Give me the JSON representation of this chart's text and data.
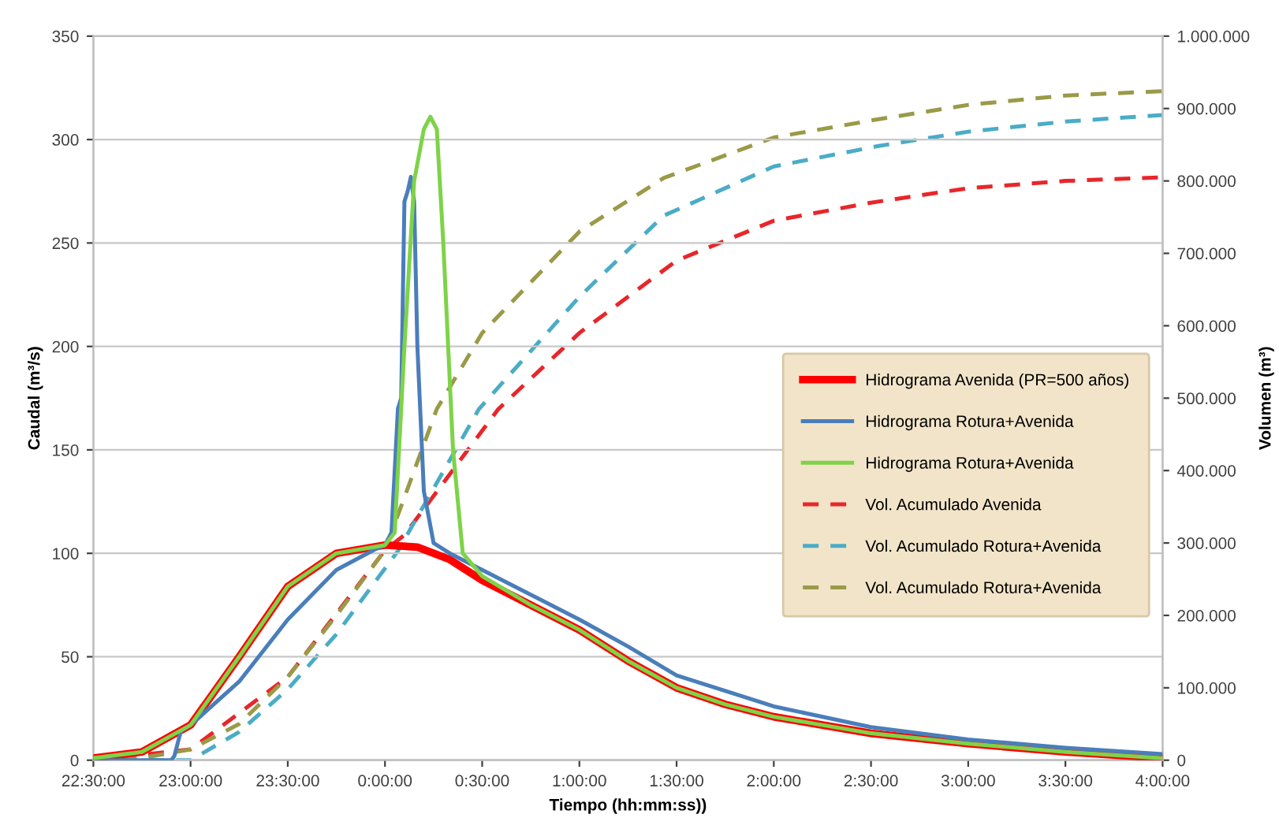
{
  "chart_data": {
    "type": "line",
    "xlabel": "Tiempo (hh:mm:ss))",
    "ylabel": "Caudal (m³/s)",
    "y2label": "Volumen (m³)",
    "xlim": [
      "2000-01-01T22:30",
      "2000-01-02T04:00"
    ],
    "xticks": [
      {
        "value": "2000-01-01T22:30",
        "label": "22:30:00"
      },
      {
        "value": "2000-01-01T23:00",
        "label": "23:00:00"
      },
      {
        "value": "2000-01-01T23:30",
        "label": "23:30:00"
      },
      {
        "value": "2000-01-02T00:00",
        "label": "0:00:00"
      },
      {
        "value": "2000-01-02T00:30",
        "label": "0:30:00"
      },
      {
        "value": "2000-01-02T01:00",
        "label": "1:00:00"
      },
      {
        "value": "2000-01-02T01:30",
        "label": "1:30:00"
      },
      {
        "value": "2000-01-02T02:00",
        "label": "2:00:00"
      },
      {
        "value": "2000-01-02T02:30",
        "label": "2:30:00"
      },
      {
        "value": "2000-01-02T03:00",
        "label": "3:00:00"
      },
      {
        "value": "2000-01-02T03:30",
        "label": "3:30:00"
      },
      {
        "value": "2000-01-02T04:00",
        "label": "4:00:00"
      }
    ],
    "ylim": [
      0,
      350
    ],
    "yticks": [
      0,
      50,
      100,
      150,
      200,
      250,
      300,
      350
    ],
    "y2lim": [
      0,
      1000000
    ],
    "y2ticks": [
      {
        "value": 0,
        "label": "0"
      },
      {
        "value": 100000,
        "label": "100.000"
      },
      {
        "value": 200000,
        "label": "200.000"
      },
      {
        "value": 300000,
        "label": "300.000"
      },
      {
        "value": 400000,
        "label": "400.000"
      },
      {
        "value": 500000,
        "label": "500.000"
      },
      {
        "value": 600000,
        "label": "600.000"
      },
      {
        "value": 700000,
        "label": "700.000"
      },
      {
        "value": 800000,
        "label": "800.000"
      },
      {
        "value": 900000,
        "label": "900.000"
      },
      {
        "value": 1000000,
        "label": "1.000.000"
      }
    ],
    "grid": "y",
    "legend": "right",
    "marker": "none",
    "series": [
      {
        "name": "Hidrograma Avenida (PR=500 años)",
        "color": "#ff0000",
        "line_style": "solid",
        "axis": "y",
        "x": [
          "2000-01-01T22:30",
          "2000-01-01T22:45",
          "2000-01-01T23:00",
          "2000-01-01T23:15",
          "2000-01-01T23:30",
          "2000-01-01T23:45",
          "2000-01-02T00:00",
          "2000-01-02T00:10",
          "2000-01-02T00:20",
          "2000-01-02T00:30",
          "2000-01-02T00:45",
          "2000-01-02T01:00",
          "2000-01-02T01:15",
          "2000-01-02T01:30",
          "2000-01-02T01:45",
          "2000-01-02T02:00",
          "2000-01-02T02:30",
          "2000-01-02T03:00",
          "2000-01-02T03:30",
          "2000-01-02T04:00"
        ],
        "values": [
          1,
          4,
          17,
          50,
          84,
          100,
          104,
          103,
          97,
          87,
          75,
          63,
          48,
          35,
          27,
          21,
          13,
          8,
          4,
          1
        ]
      },
      {
        "name": "Hidrograma Rotura+Avenida",
        "color": "#4a7ebb",
        "line_style": "solid",
        "axis": "y",
        "x": [
          "2000-01-01T22:30",
          "2000-01-01T22:54",
          "2000-01-01T22:55",
          "2000-01-01T22:57",
          "2000-01-01T23:00",
          "2000-01-01T23:15",
          "2000-01-01T23:30",
          "2000-01-01T23:45",
          "2000-01-01T23:57",
          "2000-01-02T00:00",
          "2000-01-02T00:02",
          "2000-01-02T00:04",
          "2000-01-02T00:05",
          "2000-01-02T00:06",
          "2000-01-02T00:07",
          "2000-01-02T00:08",
          "2000-01-02T00:09",
          "2000-01-02T00:10",
          "2000-01-02T00:12",
          "2000-01-02T00:15",
          "2000-01-02T00:20",
          "2000-01-02T00:30",
          "2000-01-02T00:45",
          "2000-01-02T01:00",
          "2000-01-02T01:15",
          "2000-01-02T01:30",
          "2000-01-02T02:00",
          "2000-01-02T02:30",
          "2000-01-02T03:00",
          "2000-01-02T03:30",
          "2000-01-02T04:00"
        ],
        "values": [
          0,
          0,
          2,
          14,
          17,
          38,
          68,
          92,
          102,
          104,
          110,
          170,
          175,
          270,
          275,
          282,
          270,
          200,
          130,
          105,
          100,
          92,
          80,
          68,
          55,
          41,
          26,
          16,
          10,
          6,
          3
        ]
      },
      {
        "name": "Hidrograma Rotura+Avenida",
        "color": "#7ed348",
        "line_style": "solid",
        "axis": "y",
        "x": [
          "2000-01-01T22:30",
          "2000-01-01T22:45",
          "2000-01-01T23:00",
          "2000-01-01T23:15",
          "2000-01-01T23:30",
          "2000-01-01T23:45",
          "2000-01-02T00:00",
          "2000-01-02T00:03",
          "2000-01-02T00:06",
          "2000-01-02T00:09",
          "2000-01-02T00:12",
          "2000-01-02T00:14",
          "2000-01-02T00:16",
          "2000-01-02T00:18",
          "2000-01-02T00:21",
          "2000-01-02T00:24",
          "2000-01-02T00:30",
          "2000-01-02T00:45",
          "2000-01-02T01:00",
          "2000-01-02T01:15",
          "2000-01-02T01:30",
          "2000-01-02T01:45",
          "2000-01-02T02:00",
          "2000-01-02T02:30",
          "2000-01-02T03:00",
          "2000-01-02T03:30",
          "2000-01-02T04:00"
        ],
        "values": [
          1,
          4,
          17,
          50,
          84,
          100,
          104,
          110,
          200,
          280,
          305,
          311,
          305,
          250,
          150,
          100,
          89,
          75,
          63,
          48,
          35,
          27,
          21,
          13,
          8,
          4,
          1
        ]
      },
      {
        "name": "Vol. Acumulado Avenida",
        "color": "#e8262a",
        "line_style": "dashed",
        "axis": "y2",
        "x": [
          "2000-01-01T22:30",
          "2000-01-01T23:00",
          "2000-01-01T23:30",
          "2000-01-02T00:00",
          "2000-01-02T00:06",
          "2000-01-02T00:35",
          "2000-01-02T01:00",
          "2000-01-02T01:30",
          "2000-01-02T02:00",
          "2000-01-02T02:30",
          "2000-01-02T03:00",
          "2000-01-02T03:30",
          "2000-01-02T04:00"
        ],
        "values": [
          0,
          15000,
          115000,
          290000,
          311000,
          485000,
          590000,
          690000,
          745000,
          770000,
          790000,
          800000,
          805000
        ]
      },
      {
        "name": "Vol. Acumulado Rotura+Avenida",
        "color": "#4bacc6",
        "line_style": "dashed",
        "axis": "y2",
        "x": [
          "2000-01-01T22:30",
          "2000-01-01T23:00",
          "2000-01-01T23:15",
          "2000-01-01T23:30",
          "2000-01-01T23:45",
          "2000-01-02T00:04",
          "2000-01-02T00:29",
          "2000-01-02T01:00",
          "2000-01-02T01:26",
          "2000-01-02T02:00",
          "2000-01-02T02:32",
          "2000-01-02T03:00",
          "2000-01-02T03:30",
          "2000-01-02T04:00"
        ],
        "values": [
          0,
          0,
          39000,
          98000,
          174000,
          289000,
          485000,
          640000,
          752000,
          820000,
          848000,
          868000,
          882000,
          891000
        ]
      },
      {
        "name": "Vol. Acumulado Rotura+Avenida",
        "color": "#9a9a48",
        "line_style": "dashed",
        "axis": "y2",
        "x": [
          "2000-01-01T22:30",
          "2000-01-01T22:45",
          "2000-01-01T23:00",
          "2000-01-01T23:15",
          "2000-01-01T23:30",
          "2000-01-01T23:45",
          "2000-01-02T00:00",
          "2000-01-02T00:16",
          "2000-01-02T00:30",
          "2000-01-02T01:00",
          "2000-01-02T01:26",
          "2000-01-02T02:00",
          "2000-01-02T02:32",
          "2000-01-02T03:00",
          "2000-01-02T03:30",
          "2000-01-02T04:00"
        ],
        "values": [
          0,
          3000,
          15000,
          50000,
          115000,
          200000,
          290000,
          485000,
          590000,
          730000,
          804000,
          860000,
          885000,
          905000,
          918000,
          924000
        ]
      }
    ]
  }
}
